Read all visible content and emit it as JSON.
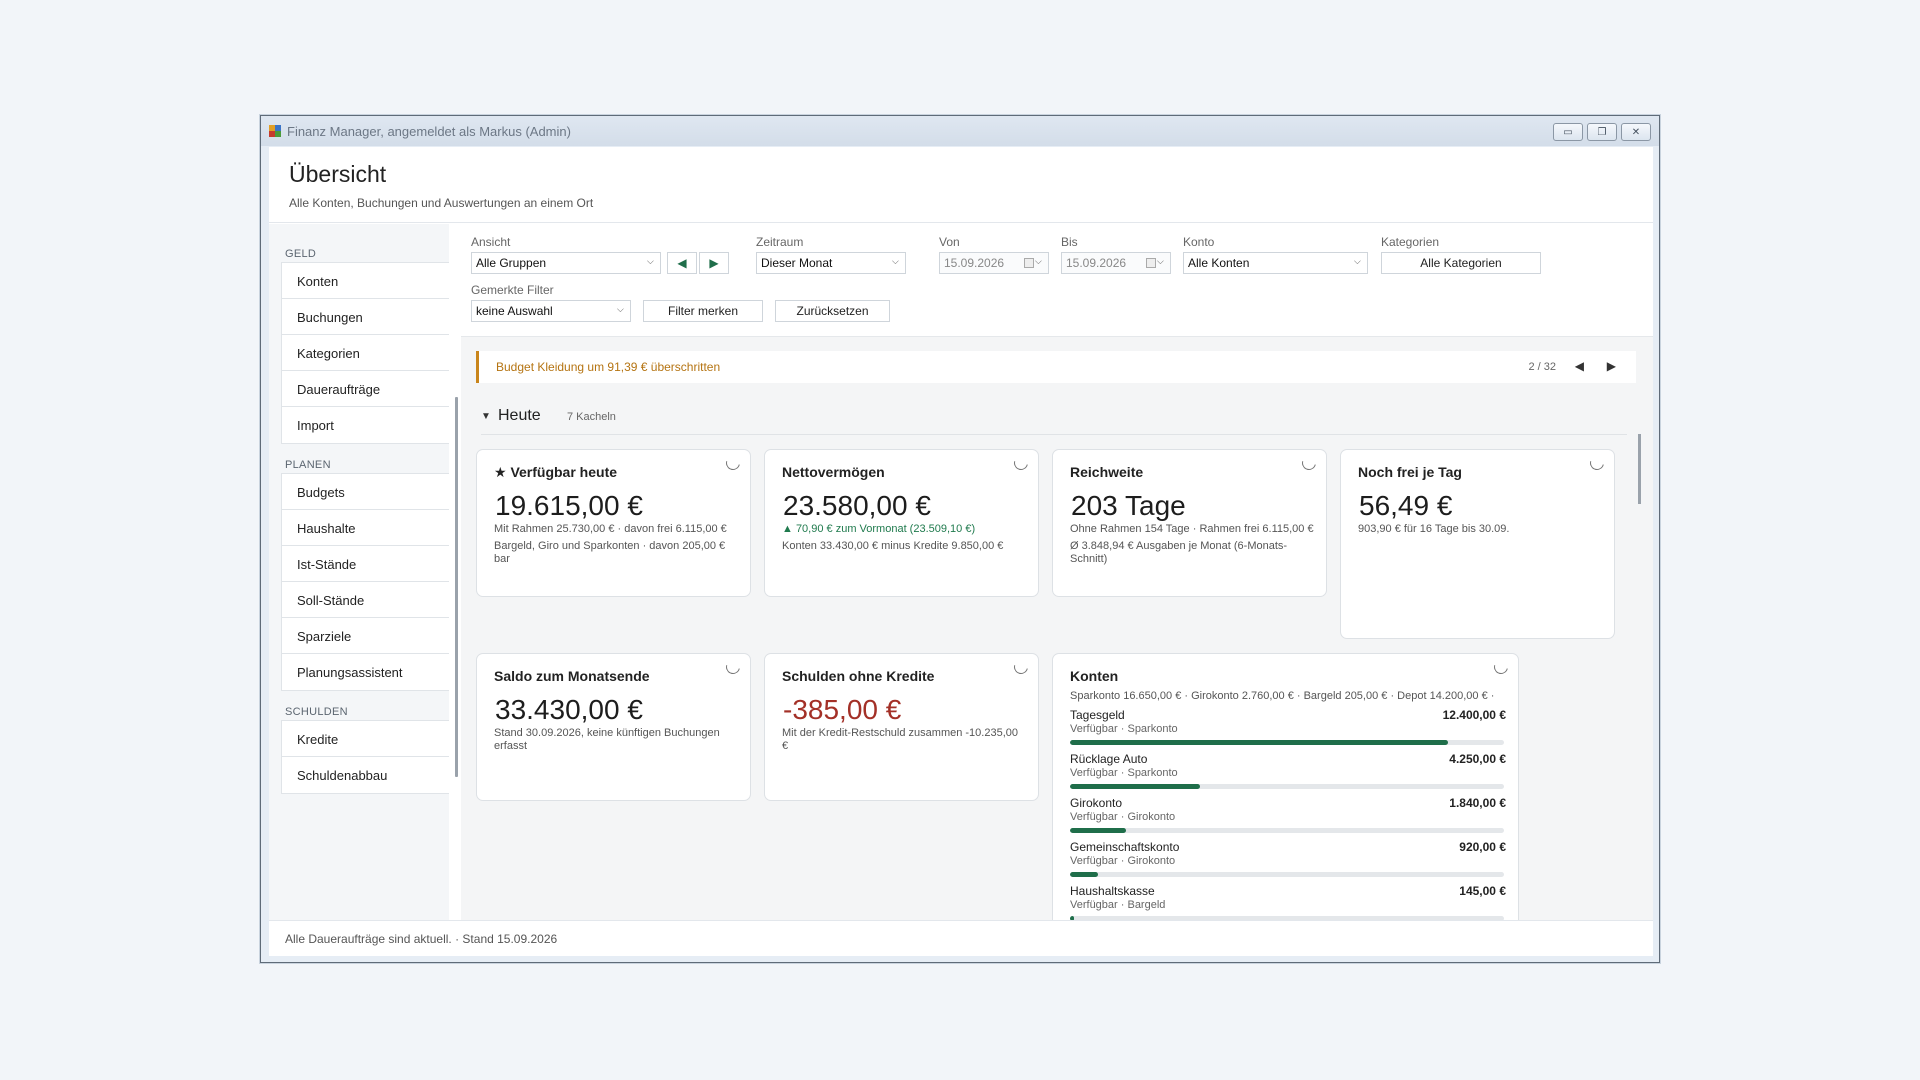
{
  "window": {
    "title": "Finanz Manager, angemeldet als Markus (Admin)",
    "controls": [
      "▭",
      "❐",
      "✕"
    ]
  },
  "header": {
    "title": "Übersicht",
    "subtitle": "Alle Konten, Buchungen und Auswertungen an einem Ort"
  },
  "sidebar": {
    "sections": [
      {
        "label": "GELD",
        "items": [
          "Konten",
          "Buchungen",
          "Kategorien",
          "Daueraufträge",
          "Import"
        ]
      },
      {
        "label": "PLANEN",
        "items": [
          "Budgets",
          "Haushalte",
          "Ist-Stände",
          "Soll-Stände",
          "Sparziele",
          "Planungsassistent"
        ]
      },
      {
        "label": "SCHULDEN",
        "items": [
          "Kredite",
          "Schuldenabbau"
        ]
      }
    ]
  },
  "filters": {
    "ansicht": {
      "label": "Ansicht",
      "value": "Alle Gruppen"
    },
    "zeitraum": {
      "label": "Zeitraum",
      "value": "Dieser Monat"
    },
    "von": {
      "label": "Von",
      "value": "15.09.2026"
    },
    "bis": {
      "label": "Bis",
      "value": "15.09.2026"
    },
    "konto": {
      "label": "Konto",
      "value": "Alle Konten"
    },
    "kategorien": {
      "label": "Kategorien",
      "value": "Alle Kategorien"
    },
    "gemerkt": {
      "label": "Gemerkte Filter",
      "value": "keine Auswahl"
    },
    "filter_merken": "Filter merken",
    "zuruecksetzen": "Zurücksetzen"
  },
  "alert": {
    "text": "Budget Kleidung um 91,39 € überschritten",
    "count": "2 / 32"
  },
  "section": {
    "title": "Heute",
    "count": "7 Kacheln"
  },
  "tiles": {
    "verfuegbar": {
      "title": "★ Verfügbar heute",
      "value": "19.615,00 €",
      "line1": "Mit Rahmen 25.730,00 € · davon frei 6.115,00 €",
      "line2": "Bargeld, Giro und Sparkonten · davon 205,00 € bar"
    },
    "netto": {
      "title": "Nettovermögen",
      "value": "23.580,00 €",
      "line1": "▲ 70,90 € zum Vormonat (23.509,10 €)",
      "line2": "Konten 33.430,00 € minus Kredite 9.850,00 €"
    },
    "reichweite": {
      "title": "Reichweite",
      "value": "203 Tage",
      "line1": "Ohne Rahmen 154 Tage · Rahmen frei 6.115,00 €",
      "line2": "Ø 3.848,94 € Ausgaben je Monat (6-Monats-Schnitt)"
    },
    "frei": {
      "title": "Noch frei je Tag",
      "value": "56,49 €",
      "line1": "903,90 € für 16 Tage bis 30.09."
    },
    "saldo": {
      "title": "Saldo zum Monatsende",
      "value": "33.430,00 €",
      "line1": "Stand 30.09.2026, keine künftigen Buchungen erfasst"
    },
    "schulden": {
      "title": "Schulden ohne Kredite",
      "value": "-385,00 €",
      "line1": "Mit der Kredit-Restschuld zusammen -10.235,00 €"
    },
    "konten": {
      "title": "Konten",
      "summary": "Sparkonto 16.650,00 € · Girokonto 2.760,00 € · Bargeld 205,00 € · Depot 14.200,00 € ·",
      "rows": [
        {
          "name": "Tagesgeld",
          "sub": "Verfügbar · Sparkonto",
          "amount": "12.400,00 €",
          "fill": 0.87
        },
        {
          "name": "Rücklage Auto",
          "sub": "Verfügbar · Sparkonto",
          "amount": "4.250,00 €",
          "fill": 0.3
        },
        {
          "name": "Girokonto",
          "sub": "Verfügbar · Girokonto",
          "amount": "1.840,00 €",
          "fill": 0.13
        },
        {
          "name": "Gemeinschaftskonto",
          "sub": "Verfügbar · Girokonto",
          "amount": "920,00 €",
          "fill": 0.065
        },
        {
          "name": "Haushaltskasse",
          "sub": "Verfügbar · Bargeld",
          "amount": "145,00 €",
          "fill": 0.01
        }
      ]
    }
  },
  "status": {
    "text": "Alle Daueraufträge sind aktuell.  ·  Stand 15.09.2026"
  }
}
